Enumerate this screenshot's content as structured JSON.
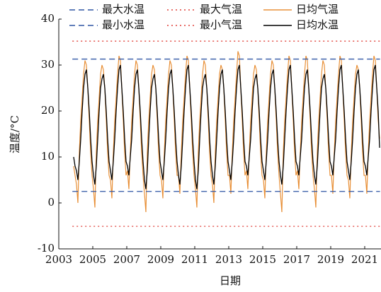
{
  "chart_data": {
    "type": "line",
    "xlabel": "日期",
    "ylabel": "温度/°C",
    "xlim": [
      2003,
      2022
    ],
    "xticks": [
      2003,
      2005,
      2007,
      2009,
      2011,
      2013,
      2015,
      2017,
      2019,
      2021
    ],
    "ylim": [
      -10,
      40
    ],
    "yticks": [
      -10,
      0,
      10,
      20,
      30,
      40
    ],
    "hlines": [
      {
        "name": "最大水温",
        "color": "#2f55a4",
        "style": "dashed",
        "value": 31.3,
        "x": [
          2003.8,
          2021.9
        ]
      },
      {
        "name": "最大气温",
        "color": "#e0413a",
        "style": "dotted",
        "value": 35.2,
        "x": [
          2003.8,
          2021.9
        ]
      },
      {
        "name": "最小水温",
        "color": "#2f55a4",
        "style": "dashed",
        "value": 2.5,
        "x": [
          2003.8,
          2021.9
        ]
      },
      {
        "name": "最小气温",
        "color": "#e0413a",
        "style": "dotted",
        "value": -5.1,
        "x": [
          2003.8,
          2021.9
        ]
      }
    ],
    "x": [
      2003.875,
      2003.958,
      2004.042,
      2004.125,
      2004.208,
      2004.292,
      2004.375,
      2004.458,
      2004.542,
      2004.625,
      2004.708,
      2004.792,
      2004.875,
      2004.958,
      2005.042,
      2005.125,
      2005.208,
      2005.292,
      2005.375,
      2005.458,
      2005.542,
      2005.625,
      2005.708,
      2005.792,
      2005.875,
      2005.958,
      2006.042,
      2006.125,
      2006.208,
      2006.292,
      2006.375,
      2006.458,
      2006.542,
      2006.625,
      2006.708,
      2006.792,
      2006.875,
      2006.958,
      2007.042,
      2007.125,
      2007.208,
      2007.292,
      2007.375,
      2007.458,
      2007.542,
      2007.625,
      2007.708,
      2007.792,
      2007.875,
      2007.958,
      2008.042,
      2008.125,
      2008.208,
      2008.292,
      2008.375,
      2008.458,
      2008.542,
      2008.625,
      2008.708,
      2008.792,
      2008.875,
      2008.958,
      2009.042,
      2009.125,
      2009.208,
      2009.292,
      2009.375,
      2009.458,
      2009.542,
      2009.625,
      2009.708,
      2009.792,
      2009.875,
      2009.958,
      2010.042,
      2010.125,
      2010.208,
      2010.292,
      2010.375,
      2010.458,
      2010.542,
      2010.625,
      2010.708,
      2010.792,
      2010.875,
      2010.958,
      2011.042,
      2011.125,
      2011.208,
      2011.292,
      2011.375,
      2011.458,
      2011.542,
      2011.625,
      2011.708,
      2011.792,
      2011.875,
      2011.958,
      2012.042,
      2012.125,
      2012.208,
      2012.292,
      2012.375,
      2012.458,
      2012.542,
      2012.625,
      2012.708,
      2012.792,
      2012.875,
      2012.958,
      2013.042,
      2013.125,
      2013.208,
      2013.292,
      2013.375,
      2013.458,
      2013.542,
      2013.625,
      2013.708,
      2013.792,
      2013.875,
      2013.958,
      2014.042,
      2014.125,
      2014.208,
      2014.292,
      2014.375,
      2014.458,
      2014.542,
      2014.625,
      2014.708,
      2014.792,
      2014.875,
      2014.958,
      2015.042,
      2015.125,
      2015.208,
      2015.292,
      2015.375,
      2015.458,
      2015.542,
      2015.625,
      2015.708,
      2015.792,
      2015.875,
      2015.958,
      2016.042,
      2016.125,
      2016.208,
      2016.292,
      2016.375,
      2016.458,
      2016.542,
      2016.625,
      2016.708,
      2016.792,
      2016.875,
      2016.958,
      2017.042,
      2017.125,
      2017.208,
      2017.292,
      2017.375,
      2017.458,
      2017.542,
      2017.625,
      2017.708,
      2017.792,
      2017.875,
      2017.958,
      2018.042,
      2018.125,
      2018.208,
      2018.292,
      2018.375,
      2018.458,
      2018.542,
      2018.625,
      2018.708,
      2018.792,
      2018.875,
      2018.958,
      2019.042,
      2019.125,
      2019.208,
      2019.292,
      2019.375,
      2019.458,
      2019.542,
      2019.625,
      2019.708,
      2019.792,
      2019.875,
      2019.958,
      2020.042,
      2020.125,
      2020.208,
      2020.292,
      2020.375,
      2020.458,
      2020.542,
      2020.625,
      2020.708,
      2020.792,
      2020.875,
      2020.958,
      2021.042,
      2021.125,
      2021.208,
      2021.292,
      2021.375,
      2021.458,
      2021.542,
      2021.625,
      2021.708,
      2021.792,
      2021.875
    ],
    "series": [
      {
        "name": "日均气温",
        "color": "#e8913a",
        "values": [
          8,
          6,
          4,
          0,
          11,
          18,
          23,
          28,
          31,
          30,
          25,
          18,
          11,
          6,
          3,
          -1,
          11,
          18,
          23,
          28,
          30,
          29,
          25,
          18,
          11,
          6,
          5,
          1,
          11,
          18,
          23,
          28,
          32,
          31,
          25,
          18,
          11,
          6,
          7,
          3,
          11,
          18,
          23,
          28,
          31,
          30,
          25,
          18,
          11,
          6,
          2,
          -2,
          11,
          18,
          23,
          28,
          30,
          29,
          25,
          18,
          11,
          6,
          5,
          1,
          11,
          18,
          23,
          28,
          31,
          30,
          25,
          18,
          11,
          6,
          6,
          2,
          11,
          18,
          23,
          28,
          32,
          31,
          25,
          18,
          11,
          6,
          3,
          -1,
          11,
          18,
          23,
          28,
          31,
          30,
          25,
          18,
          11,
          6,
          4,
          0,
          11,
          18,
          23,
          28,
          30,
          29,
          25,
          18,
          11,
          6,
          6,
          2,
          11,
          18,
          23,
          28,
          33,
          32,
          25,
          18,
          11,
          6,
          7,
          3,
          11,
          18,
          23,
          28,
          30,
          29,
          25,
          18,
          11,
          6,
          5,
          1,
          11,
          18,
          23,
          28,
          31,
          30,
          25,
          18,
          11,
          6,
          2,
          -2,
          11,
          18,
          23,
          28,
          32,
          31,
          25,
          18,
          11,
          6,
          7,
          3,
          11,
          18,
          23,
          28,
          32,
          31,
          25,
          18,
          11,
          6,
          3,
          -1,
          11,
          18,
          23,
          28,
          31,
          30,
          25,
          18,
          11,
          6,
          6,
          2,
          11,
          18,
          23,
          28,
          32,
          31,
          25,
          18,
          11,
          6,
          5,
          1,
          11,
          18,
          23,
          28,
          30,
          29,
          25,
          18,
          11,
          6,
          6,
          2,
          11,
          18,
          23,
          28,
          32,
          31,
          25,
          18,
          14
        ]
      },
      {
        "name": "日均水温",
        "color": "#000000",
        "values": [
          10,
          8,
          7,
          5,
          9,
          14,
          20,
          25,
          28,
          29,
          25,
          20,
          14,
          9,
          6,
          4,
          8,
          14,
          20,
          25,
          27,
          28,
          25,
          20,
          14,
          9,
          7,
          5,
          9,
          14,
          20,
          25,
          29,
          30,
          25,
          20,
          14,
          9,
          8,
          6,
          10,
          14,
          20,
          25,
          28,
          29,
          25,
          20,
          14,
          9,
          5,
          3,
          7,
          14,
          20,
          25,
          27,
          28,
          25,
          20,
          14,
          9,
          7,
          5,
          9,
          14,
          20,
          25,
          28,
          29,
          25,
          20,
          14,
          9,
          6,
          4,
          8,
          14,
          20,
          25,
          29,
          30,
          25,
          20,
          14,
          9,
          5,
          3,
          7,
          14,
          20,
          25,
          27,
          28,
          25,
          20,
          14,
          9,
          6,
          4,
          8,
          14,
          20,
          25,
          28,
          29,
          25,
          20,
          14,
          9,
          7,
          5,
          9,
          14,
          20,
          25,
          29,
          30,
          25,
          20,
          14,
          9,
          8,
          6,
          10,
          14,
          20,
          25,
          27,
          28,
          25,
          20,
          14,
          9,
          7,
          5,
          9,
          14,
          20,
          25,
          28,
          29,
          25,
          20,
          14,
          9,
          6,
          4,
          8,
          14,
          20,
          25,
          29,
          30,
          25,
          20,
          14,
          9,
          8,
          6,
          10,
          14,
          20,
          25,
          28,
          29,
          25,
          20,
          14,
          9,
          6,
          4,
          8,
          14,
          20,
          25,
          27,
          28,
          25,
          20,
          14,
          9,
          8,
          6,
          10,
          14,
          20,
          25,
          29,
          30,
          25,
          20,
          14,
          9,
          7,
          5,
          9,
          14,
          20,
          25,
          28,
          29,
          25,
          20,
          14,
          9,
          8,
          6,
          10,
          14,
          20,
          25,
          29,
          30,
          25,
          20,
          12
        ]
      }
    ]
  }
}
